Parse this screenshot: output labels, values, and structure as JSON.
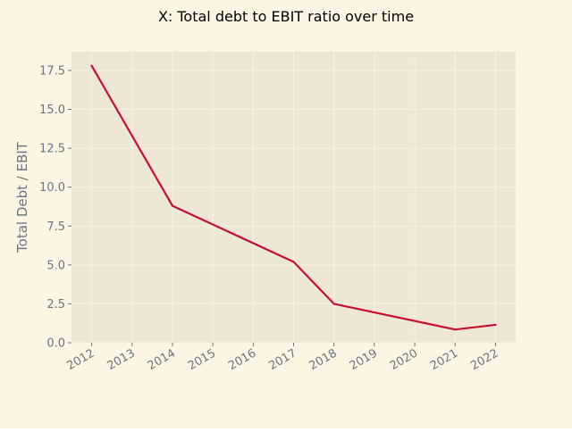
{
  "colors": {
    "figure_bg": "#fdf5e3",
    "plot_bg": "#efe7d5",
    "grid": "#f8f3ea",
    "line": "#c8102e",
    "tick_text": "#6b7580",
    "title_text": "#000000"
  },
  "chart_data": {
    "type": "line",
    "title": "X: Total debt to EBIT ratio over time",
    "xlabel": "",
    "ylabel": "Total Debt / EBIT",
    "x": [
      2012,
      2014,
      2017,
      2018,
      2021,
      2022
    ],
    "series": [
      {
        "name": "Total Debt / EBIT",
        "values": [
          17.8,
          8.8,
          5.2,
          2.5,
          0.85,
          1.15
        ]
      }
    ],
    "xticks": [
      2012,
      2013,
      2014,
      2015,
      2016,
      2017,
      2018,
      2019,
      2020,
      2021,
      2022
    ],
    "xtick_labels": [
      "2012",
      "2013",
      "2014",
      "2015",
      "2016",
      "2017",
      "2018",
      "2019",
      "2020",
      "2021",
      "2022"
    ],
    "yticks": [
      0.0,
      2.5,
      5.0,
      7.5,
      10.0,
      12.5,
      15.0,
      17.5
    ],
    "ytick_labels": [
      "0.0",
      "2.5",
      "5.0",
      "7.5",
      "10.0",
      "12.5",
      "15.0",
      "17.5"
    ],
    "xlim": [
      2011.5,
      2022.5
    ],
    "ylim": [
      0,
      18.7
    ],
    "grid": true,
    "legend": "none"
  }
}
